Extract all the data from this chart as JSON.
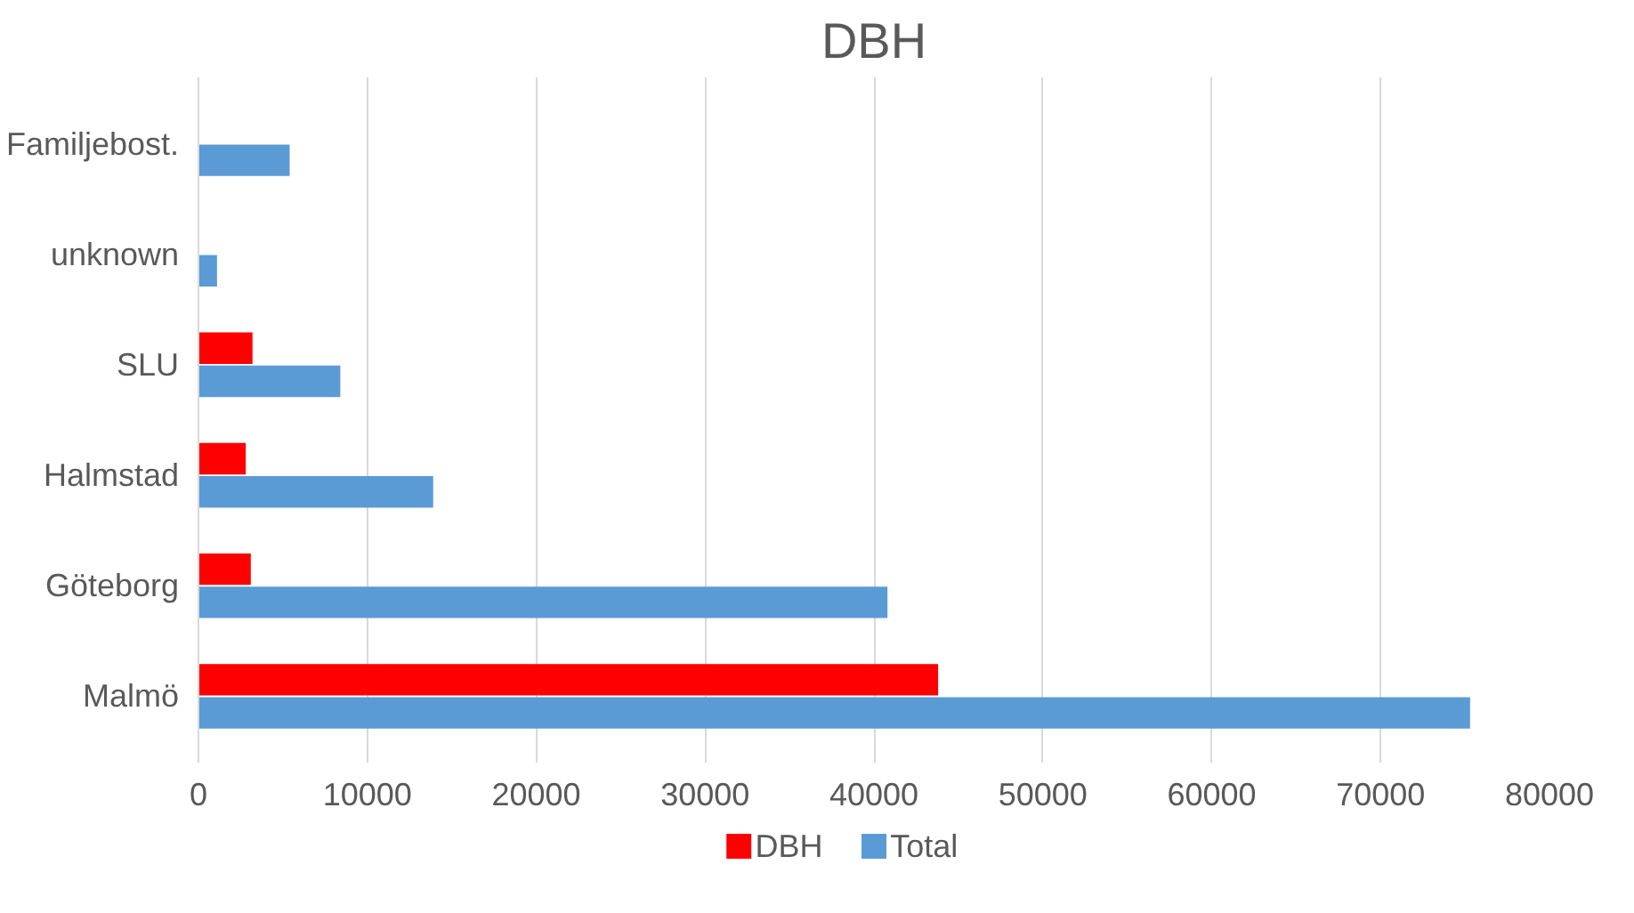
{
  "chart_data": {
    "type": "bar",
    "orientation": "horizontal",
    "title": "DBH",
    "categories": [
      "Familjebost.",
      "unknown",
      "SLU",
      "Halmstad",
      "Göteborg",
      "Malmö"
    ],
    "series": [
      {
        "name": "DBH",
        "color": "#ff0000",
        "values": [
          null,
          null,
          3200,
          2800,
          3100,
          43800
        ]
      },
      {
        "name": "Total",
        "color": "#5b9bd5",
        "values": [
          5400,
          1100,
          8400,
          13900,
          40800,
          75300
        ]
      }
    ],
    "xlim": [
      0,
      80000
    ],
    "xticks": [
      0,
      10000,
      20000,
      30000,
      40000,
      50000,
      60000,
      70000,
      80000
    ],
    "grid": "x",
    "legend": "bottom"
  }
}
